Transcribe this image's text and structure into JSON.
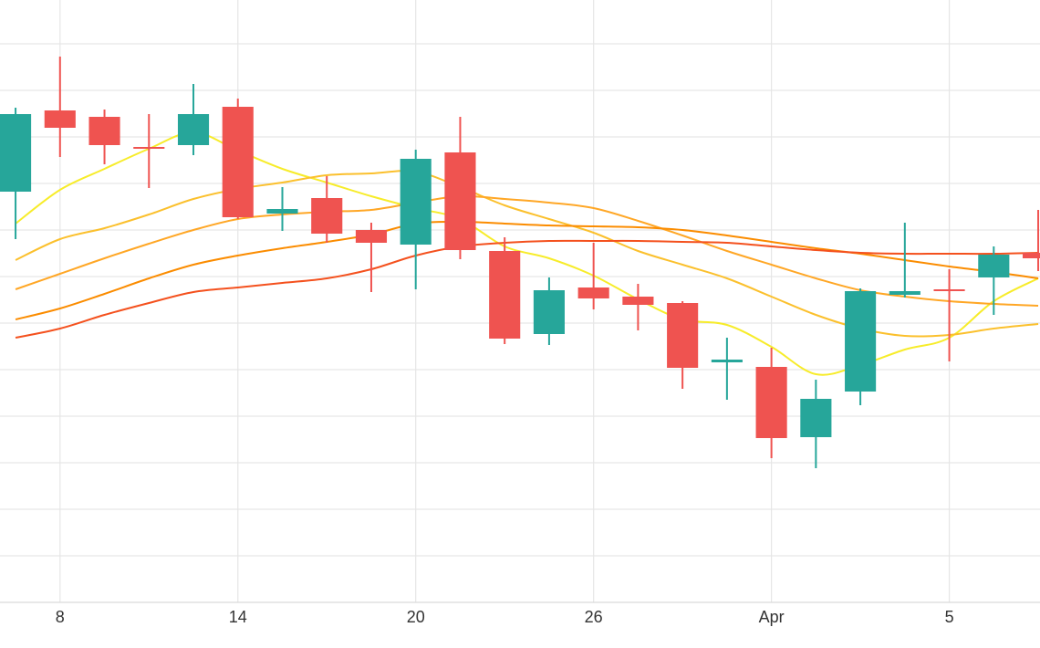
{
  "chart_data": {
    "type": "candlestick",
    "x": [
      0,
      1,
      2,
      3,
      4,
      5,
      6,
      7,
      8,
      9,
      10,
      11,
      12,
      13,
      14,
      15,
      16,
      17,
      18,
      19,
      20,
      21,
      22,
      23
    ],
    "open": [
      450,
      539,
      532,
      499,
      501,
      543,
      426,
      443,
      408,
      392,
      493,
      385,
      294,
      345,
      335,
      328,
      263,
      258,
      181,
      231,
      337,
      343,
      356,
      383
    ],
    "high": [
      542,
      598,
      540,
      535,
      568,
      552,
      455,
      467,
      416,
      496,
      532,
      400,
      356,
      394,
      349,
      330,
      290,
      279,
      244,
      344,
      416,
      365,
      390,
      430
    ],
    "low": [
      398,
      488,
      480,
      454,
      490,
      420,
      407,
      394,
      340,
      343,
      376,
      283,
      282,
      321,
      298,
      234,
      222,
      158,
      147,
      216,
      334,
      264,
      315,
      363
    ],
    "close": [
      535,
      520,
      501,
      498,
      535,
      422,
      431,
      404,
      394,
      486,
      386,
      289,
      342,
      333,
      326,
      257,
      266,
      180,
      223,
      341,
      341,
      342,
      381,
      377
    ],
    "increasing_color": "#26a69a",
    "decreasing_color": "#ef5350",
    "lines": [
      {
        "color": "#f7ec2a",
        "values": [
          415,
          452,
          475,
          497,
          515,
          495,
          475,
          460,
          445,
          432,
          420,
          390,
          377,
          358,
          332,
          310,
          304,
          280,
          250,
          260,
          277,
          290,
          330,
          355
        ]
      },
      {
        "color": "#fbc02d",
        "values": [
          375,
          398,
          410,
          425,
          442,
          453,
          460,
          468,
          470,
          472,
          455,
          435,
          420,
          405,
          385,
          370,
          355,
          335,
          315,
          300,
          292,
          293,
          300,
          305
        ]
      },
      {
        "color": "#ffa726",
        "values": [
          343,
          360,
          377,
          393,
          408,
          420,
          425,
          428,
          430,
          438,
          445,
          442,
          438,
          432,
          418,
          402,
          385,
          370,
          355,
          342,
          335,
          330,
          327,
          325
        ]
      },
      {
        "color": "#fb8c00",
        "values": [
          310,
          322,
          338,
          355,
          370,
          380,
          388,
          395,
          403,
          415,
          417,
          415,
          413,
          412,
          411,
          408,
          402,
          395,
          388,
          382,
          375,
          368,
          362,
          355
        ]
      },
      {
        "color": "#f4511e",
        "values": [
          290,
          300,
          315,
          328,
          340,
          345,
          350,
          355,
          365,
          380,
          390,
          394,
          396,
          396,
          396,
          395,
          394,
          390,
          386,
          383,
          382,
          382,
          382,
          383
        ]
      }
    ],
    "xlim": [
      -0.35,
      23.04
    ],
    "xticks": [
      {
        "value": 1,
        "label": "8"
      },
      {
        "value": 5,
        "label": "14"
      },
      {
        "value": 9,
        "label": "20"
      },
      {
        "value": 13,
        "label": "26"
      },
      {
        "value": 17,
        "label": "Apr"
      },
      {
        "value": 21,
        "label": "5"
      }
    ],
    "ylim": [
      0,
      660
    ],
    "yticks": [
      51,
      102,
      153,
      204,
      255,
      306,
      357,
      408,
      459,
      510,
      561,
      612
    ],
    "grid": true
  }
}
